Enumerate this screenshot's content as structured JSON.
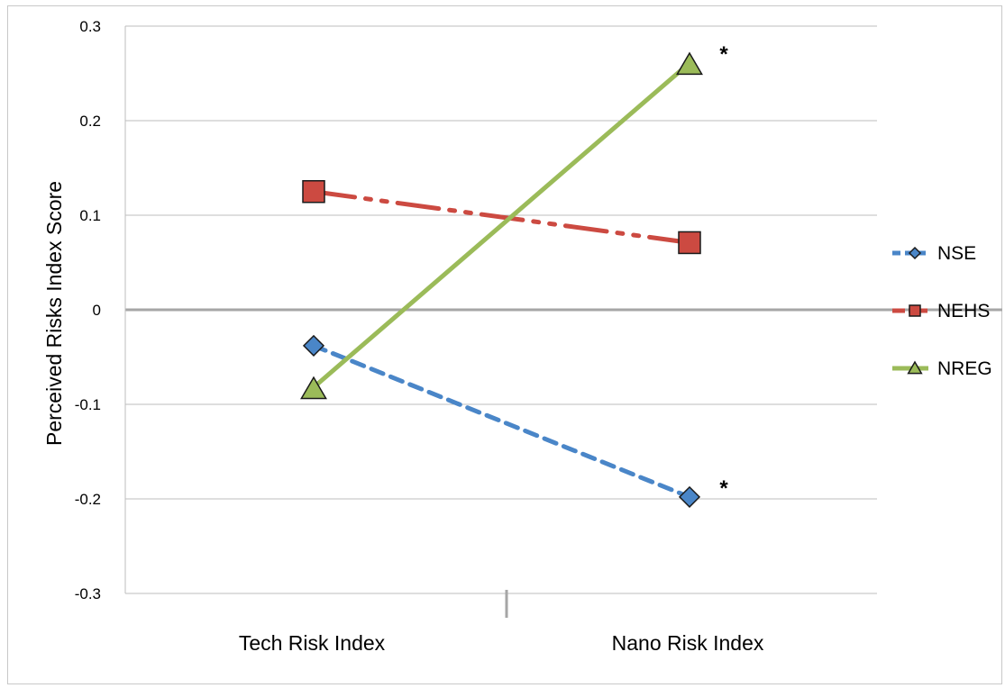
{
  "chart_data": {
    "type": "line",
    "title": "",
    "xlabel": "",
    "ylabel": "Perceived Risks Index Score",
    "categories": [
      "Tech Risk Index",
      "Nano Risk Index"
    ],
    "ylim": [
      -0.3,
      0.3
    ],
    "yticks": [
      0.3,
      0.2,
      0.1,
      0,
      -0.1,
      -0.2,
      -0.3
    ],
    "ytick_labels": [
      "0.3",
      "0.2",
      "0.1",
      "0",
      "-0.1",
      "-0.2",
      "-0.3"
    ],
    "grid": true,
    "legend_position": "right",
    "series": [
      {
        "name": "NSE",
        "values": [
          -0.038,
          -0.198
        ],
        "color": "#4a86c8",
        "line_style": "dashed",
        "marker": "diamond",
        "annotations": [
          "",
          "*"
        ]
      },
      {
        "name": "NEHS",
        "values": [
          0.125,
          0.071
        ],
        "color": "#cc4a41",
        "line_style": "dash-dot-dot",
        "marker": "square",
        "annotations": [
          "",
          ""
        ]
      },
      {
        "name": "NREG",
        "values": [
          -0.082,
          0.261
        ],
        "color": "#9bbb59",
        "line_style": "solid",
        "marker": "triangle",
        "annotations": [
          "",
          "*"
        ]
      }
    ]
  }
}
